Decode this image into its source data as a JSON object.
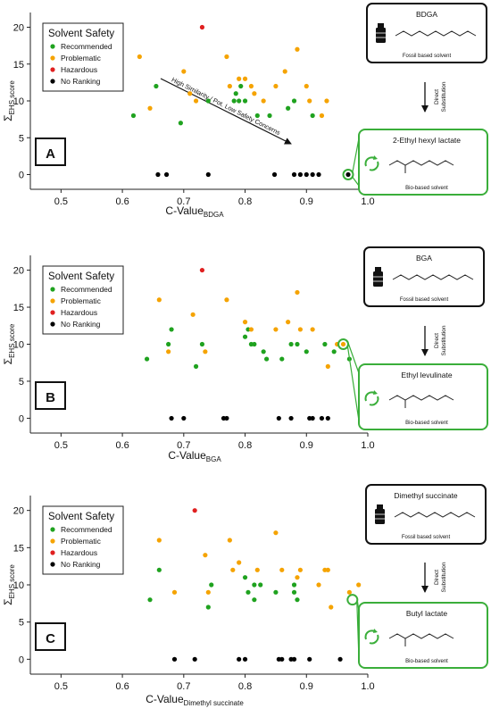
{
  "legend": {
    "title": "Solvent Safety",
    "entries": [
      {
        "label": "Recommended",
        "color": "#1fa21f"
      },
      {
        "label": "Problematic",
        "color": "#f5a300"
      },
      {
        "label": "Hazardous",
        "color": "#e02020"
      },
      {
        "label": "No Ranking",
        "color": "#000000"
      }
    ]
  },
  "flow": {
    "arrow_label_line1": "Direct",
    "arrow_label_line2": "Substitution"
  },
  "chart_data": [
    {
      "type": "scatter",
      "panel_label": "A",
      "xlabel": "C-Value",
      "xlabel_sub": "BDGA",
      "ylabel": "Σ",
      "ylabel_sub": "EHS score",
      "xlim": [
        0.45,
        1.0
      ],
      "ylim": [
        -2,
        22
      ],
      "xticks": [
        "0.5",
        "0.6",
        "0.7",
        "0.8",
        "0.9",
        "1.0"
      ],
      "yticks": [
        "0",
        "5",
        "10",
        "15",
        "20"
      ],
      "annotation": "High Similarity / Pot. Low Safety Concerns",
      "fossil_box": {
        "title": "BDGA",
        "caption": "Fossil based solvent"
      },
      "bio_box": {
        "title": "2-Ethyl hexyl lactate",
        "caption": "Bio-based solvent"
      },
      "highlight": [
        0.968,
        0
      ],
      "series": [
        {
          "name": "Recommended",
          "points": [
            [
              0.618,
              8
            ],
            [
              0.655,
              12
            ],
            [
              0.695,
              7
            ],
            [
              0.74,
              10
            ],
            [
              0.782,
              10
            ],
            [
              0.785,
              11
            ],
            [
              0.79,
              10
            ],
            [
              0.793,
              12
            ],
            [
              0.8,
              10
            ],
            [
              0.82,
              8
            ],
            [
              0.84,
              8
            ],
            [
              0.87,
              9
            ],
            [
              0.88,
              10
            ],
            [
              0.91,
              8
            ]
          ]
        },
        {
          "name": "Problematic",
          "points": [
            [
              0.628,
              16
            ],
            [
              0.645,
              9
            ],
            [
              0.7,
              14
            ],
            [
              0.71,
              11
            ],
            [
              0.72,
              10
            ],
            [
              0.77,
              16
            ],
            [
              0.775,
              12
            ],
            [
              0.79,
              13
            ],
            [
              0.8,
              13
            ],
            [
              0.81,
              12
            ],
            [
              0.815,
              11
            ],
            [
              0.83,
              10
            ],
            [
              0.85,
              12
            ],
            [
              0.865,
              14
            ],
            [
              0.885,
              17
            ],
            [
              0.9,
              12
            ],
            [
              0.905,
              10
            ],
            [
              0.925,
              8
            ],
            [
              0.933,
              10
            ]
          ]
        },
        {
          "name": "Hazardous",
          "points": [
            [
              0.73,
              20
            ]
          ]
        },
        {
          "name": "No Ranking",
          "points": [
            [
              0.658,
              0
            ],
            [
              0.672,
              0
            ],
            [
              0.74,
              0
            ],
            [
              0.848,
              0
            ],
            [
              0.88,
              0
            ],
            [
              0.89,
              0
            ],
            [
              0.9,
              0
            ],
            [
              0.91,
              0
            ],
            [
              0.92,
              0
            ],
            [
              0.968,
              0
            ]
          ]
        }
      ]
    },
    {
      "type": "scatter",
      "panel_label": "B",
      "xlabel": "C-Value",
      "xlabel_sub": "BGA",
      "ylabel": "Σ",
      "ylabel_sub": "EHS score",
      "xlim": [
        0.45,
        1.0
      ],
      "ylim": [
        -2,
        22
      ],
      "xticks": [
        "0.5",
        "0.6",
        "0.7",
        "0.8",
        "0.9",
        "1.0"
      ],
      "yticks": [
        "0",
        "5",
        "10",
        "15",
        "20"
      ],
      "annotation": "",
      "fossil_box": {
        "title": "BGA",
        "caption": "Fossil based solvent"
      },
      "bio_box": {
        "title": "Ethyl levulinate",
        "caption": "Bio-based solvent"
      },
      "highlight": [
        0.96,
        10
      ],
      "series": [
        {
          "name": "Recommended",
          "points": [
            [
              0.64,
              8
            ],
            [
              0.675,
              10
            ],
            [
              0.68,
              12
            ],
            [
              0.72,
              7
            ],
            [
              0.73,
              10
            ],
            [
              0.8,
              11
            ],
            [
              0.805,
              12
            ],
            [
              0.81,
              10
            ],
            [
              0.815,
              10
            ],
            [
              0.83,
              9
            ],
            [
              0.835,
              8
            ],
            [
              0.86,
              8
            ],
            [
              0.875,
              10
            ],
            [
              0.885,
              10
            ],
            [
              0.9,
              9
            ],
            [
              0.93,
              10
            ],
            [
              0.945,
              9
            ],
            [
              0.97,
              8
            ]
          ]
        },
        {
          "name": "Problematic",
          "points": [
            [
              0.66,
              16
            ],
            [
              0.675,
              9
            ],
            [
              0.715,
              14
            ],
            [
              0.735,
              9
            ],
            [
              0.77,
              16
            ],
            [
              0.8,
              13
            ],
            [
              0.81,
              12
            ],
            [
              0.85,
              12
            ],
            [
              0.87,
              13
            ],
            [
              0.885,
              17
            ],
            [
              0.89,
              12
            ],
            [
              0.91,
              12
            ],
            [
              0.935,
              7
            ],
            [
              0.95,
              10
            ],
            [
              0.96,
              10
            ]
          ]
        },
        {
          "name": "Hazardous",
          "points": [
            [
              0.73,
              20
            ]
          ]
        },
        {
          "name": "No Ranking",
          "points": [
            [
              0.68,
              0
            ],
            [
              0.7,
              0
            ],
            [
              0.765,
              0
            ],
            [
              0.77,
              0
            ],
            [
              0.855,
              0
            ],
            [
              0.875,
              0
            ],
            [
              0.905,
              0
            ],
            [
              0.91,
              0
            ],
            [
              0.925,
              0
            ],
            [
              0.935,
              0
            ]
          ]
        }
      ]
    },
    {
      "type": "scatter",
      "panel_label": "C",
      "xlabel": "C-Value",
      "xlabel_sub": "Dimethyl succinate",
      "ylabel": "Σ",
      "ylabel_sub": "EHS score",
      "xlim": [
        0.45,
        1.0
      ],
      "ylim": [
        -2,
        22
      ],
      "xticks": [
        "0.5",
        "0.6",
        "0.7",
        "0.8",
        "0.9",
        "1.0"
      ],
      "yticks": [
        "0",
        "5",
        "10",
        "15",
        "20"
      ],
      "annotation": "",
      "fossil_box": {
        "title": "Dimethyl succinate",
        "caption": "Fossil based solvent"
      },
      "bio_box": {
        "title": "Butyl lactate",
        "caption": "Bio-based solvent"
      },
      "highlight": [
        0.975,
        8
      ],
      "series": [
        {
          "name": "Recommended",
          "points": [
            [
              0.645,
              8
            ],
            [
              0.66,
              12
            ],
            [
              0.74,
              7
            ],
            [
              0.745,
              10
            ],
            [
              0.8,
              11
            ],
            [
              0.805,
              9
            ],
            [
              0.815,
              10
            ],
            [
              0.815,
              8
            ],
            [
              0.825,
              10
            ],
            [
              0.85,
              9
            ],
            [
              0.88,
              9
            ],
            [
              0.88,
              10
            ],
            [
              0.885,
              8
            ]
          ]
        },
        {
          "name": "Problematic",
          "points": [
            [
              0.66,
              16
            ],
            [
              0.685,
              9
            ],
            [
              0.735,
              14
            ],
            [
              0.74,
              9
            ],
            [
              0.775,
              16
            ],
            [
              0.78,
              12
            ],
            [
              0.79,
              13
            ],
            [
              0.82,
              12
            ],
            [
              0.85,
              17
            ],
            [
              0.86,
              12
            ],
            [
              0.885,
              11
            ],
            [
              0.89,
              12
            ],
            [
              0.92,
              10
            ],
            [
              0.93,
              12
            ],
            [
              0.935,
              12
            ],
            [
              0.94,
              7
            ],
            [
              0.97,
              9
            ],
            [
              0.985,
              10
            ]
          ]
        },
        {
          "name": "Hazardous",
          "points": [
            [
              0.718,
              20
            ]
          ]
        },
        {
          "name": "No Ranking",
          "points": [
            [
              0.685,
              0
            ],
            [
              0.718,
              0
            ],
            [
              0.79,
              0
            ],
            [
              0.8,
              0
            ],
            [
              0.855,
              0
            ],
            [
              0.86,
              0
            ],
            [
              0.875,
              0
            ],
            [
              0.88,
              0
            ],
            [
              0.905,
              0
            ],
            [
              0.955,
              0
            ]
          ]
        }
      ]
    }
  ]
}
